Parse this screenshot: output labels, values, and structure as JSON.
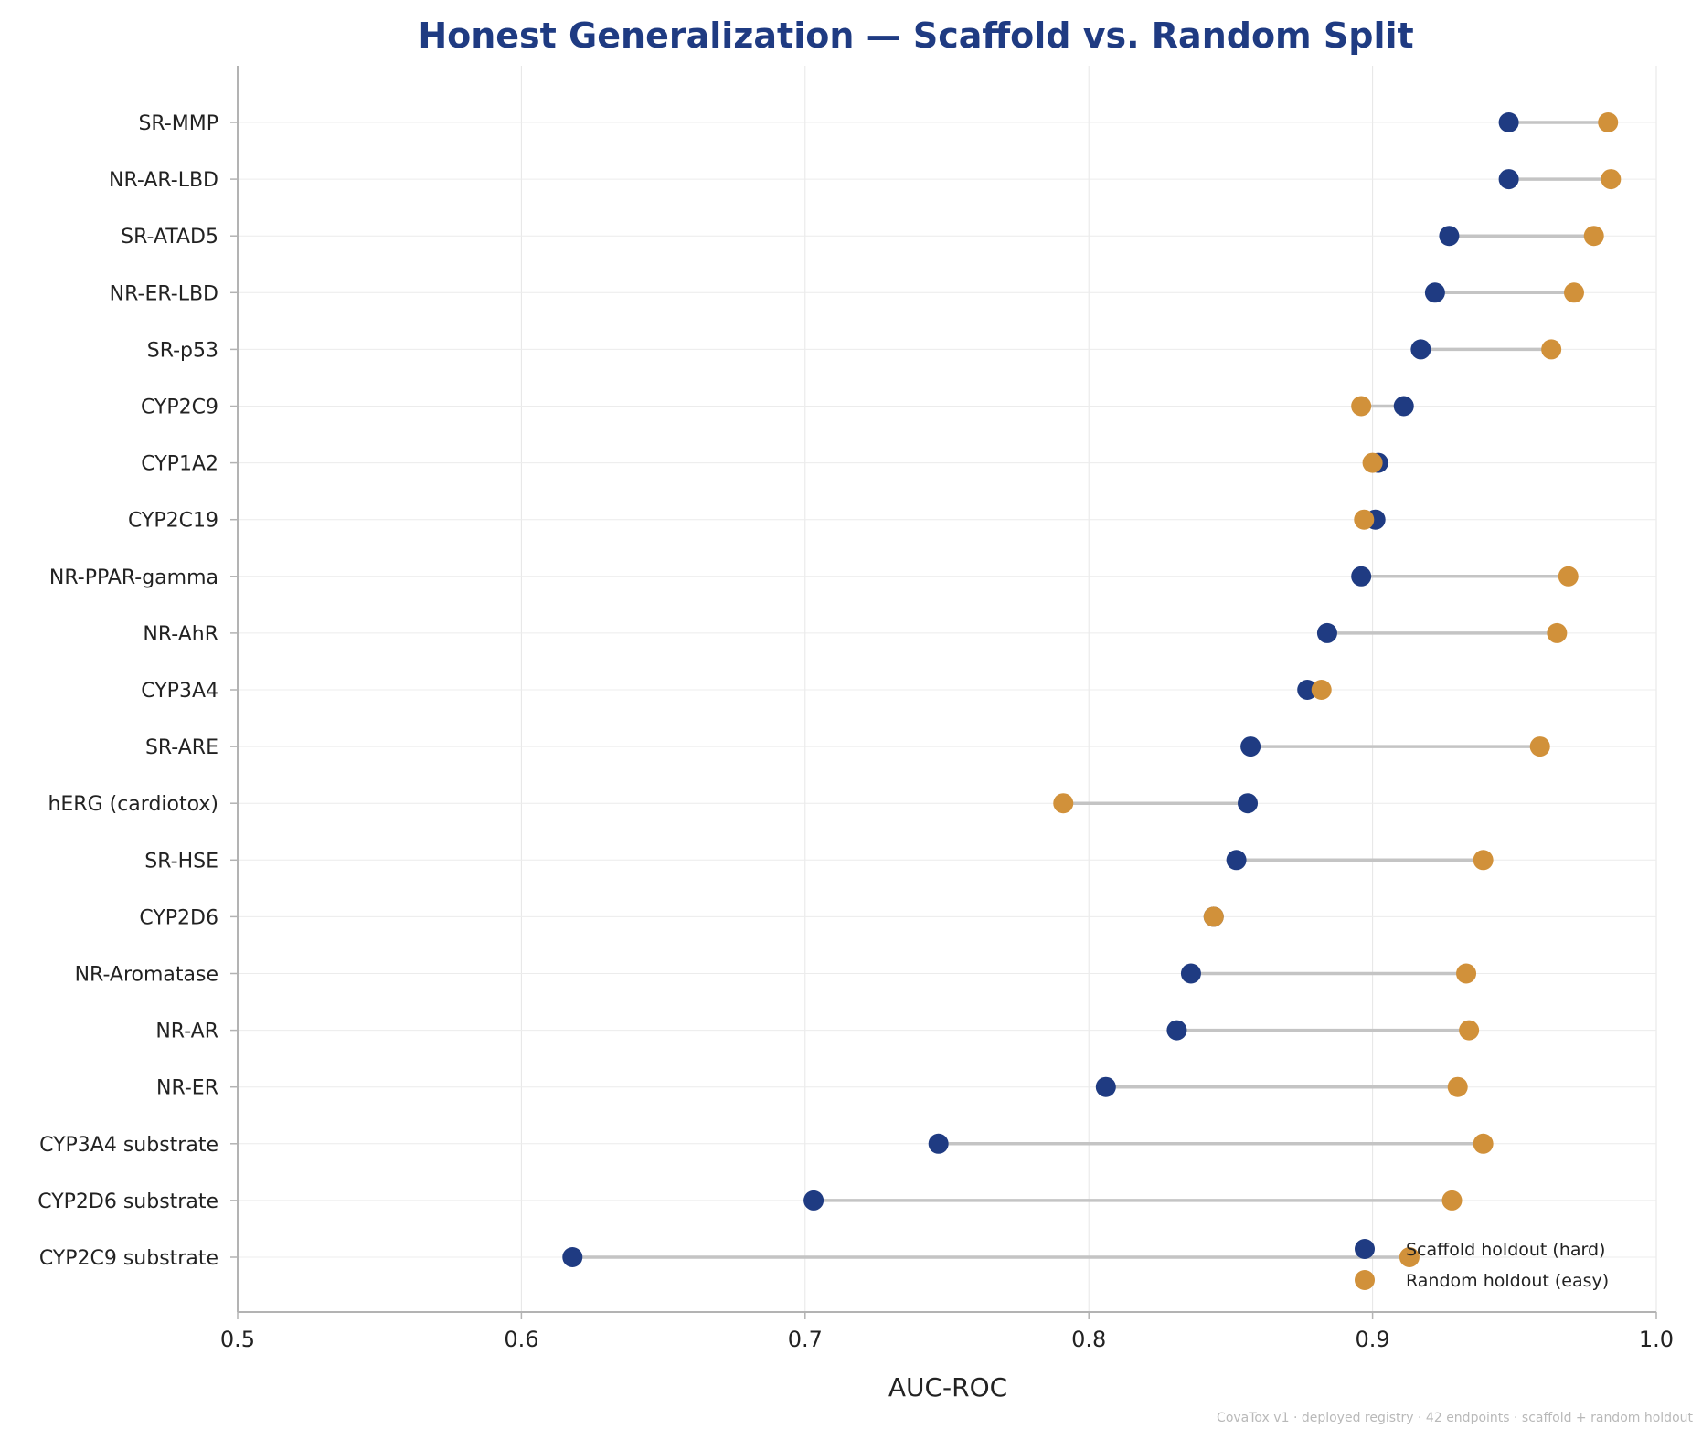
{
  "chart_data": {
    "type": "dumbbell",
    "title": "Honest Generalization — Scaffold vs. Random Split",
    "xlabel": "AUC-ROC",
    "ylabel": "",
    "xlim": [
      0.5,
      1.0
    ],
    "xticks": [
      "0.5",
      "0.6",
      "0.7",
      "0.8",
      "0.9",
      "1.0"
    ],
    "grid": true,
    "legend_position": "bottom-right",
    "categories": [
      "SR-MMP",
      "NR-AR-LBD",
      "SR-ATAD5",
      "NR-ER-LBD",
      "SR-p53",
      "CYP2C9",
      "CYP1A2",
      "CYP2C19",
      "NR-PPAR-gamma",
      "NR-AhR",
      "CYP3A4",
      "SR-ARE",
      "hERG (cardiotox)",
      "SR-HSE",
      "CYP2D6",
      "NR-Aromatase",
      "NR-AR",
      "NR-ER",
      "CYP3A4 substrate",
      "CYP2D6 substrate",
      "CYP2C9 substrate"
    ],
    "series": [
      {
        "name": "Scaffold holdout (hard)",
        "color": "#1f3b82",
        "values": [
          0.948,
          0.948,
          0.927,
          0.922,
          0.917,
          0.911,
          0.902,
          0.901,
          0.896,
          0.884,
          0.877,
          0.857,
          0.856,
          0.852,
          0.844,
          0.836,
          0.831,
          0.806,
          0.747,
          0.703,
          0.618
        ]
      },
      {
        "name": "Random holdout (easy)",
        "color": "#d1913a",
        "values": [
          0.983,
          0.984,
          0.978,
          0.971,
          0.963,
          0.896,
          0.9,
          0.897,
          0.969,
          0.965,
          0.882,
          0.959,
          0.791,
          0.939,
          0.844,
          0.933,
          0.934,
          0.93,
          0.939,
          0.928,
          0.913
        ]
      }
    ],
    "connector_color": "#c4c4c4",
    "footnote": "CovaTox v1 · deployed registry · 42 endpoints · scaffold + random holdout"
  }
}
